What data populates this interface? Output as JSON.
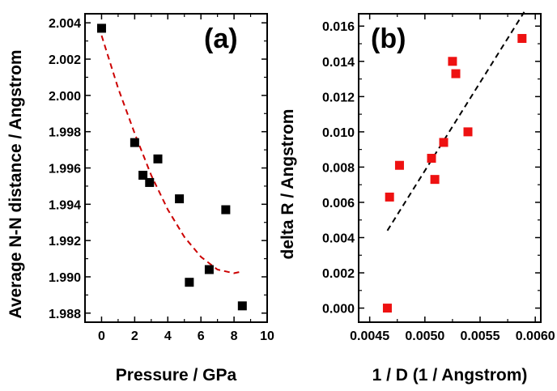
{
  "chart_data": [
    {
      "type": "scatter",
      "panel_label": "(a)",
      "xlabel": "Pressure / GPa",
      "ylabel": "Average N-N distance / Angstrom",
      "xlim": [
        -1,
        10
      ],
      "ylim": [
        1.9875,
        2.0045
      ],
      "xticks": [
        0,
        2,
        4,
        6,
        8,
        10
      ],
      "xtick_labels": [
        "0",
        "2",
        "4",
        "6",
        "8",
        "10"
      ],
      "yticks": [
        1.988,
        1.99,
        1.992,
        1.994,
        1.996,
        1.998,
        2.0,
        2.002,
        2.004
      ],
      "ytick_labels": [
        "1.988",
        "1.990",
        "1.992",
        "1.994",
        "1.996",
        "1.998",
        "2.000",
        "2.002",
        "2.004"
      ],
      "grid": false,
      "marker_color": "#000000",
      "fit_color": "#cc0000",
      "points": [
        {
          "x": 0.0,
          "y": 2.0037
        },
        {
          "x": 2.0,
          "y": 1.9974
        },
        {
          "x": 2.5,
          "y": 1.9956
        },
        {
          "x": 2.9,
          "y": 1.9952
        },
        {
          "x": 3.4,
          "y": 1.9965
        },
        {
          "x": 4.7,
          "y": 1.9943
        },
        {
          "x": 5.3,
          "y": 1.9897
        },
        {
          "x": 6.5,
          "y": 1.9904
        },
        {
          "x": 7.5,
          "y": 1.9937
        },
        {
          "x": 8.5,
          "y": 1.9884
        }
      ],
      "fit": {
        "style": "dashed",
        "x": [
          0.0,
          1.0,
          2.0,
          3.0,
          4.0,
          5.0,
          6.0,
          7.0,
          8.0,
          8.5
        ],
        "y": [
          2.0033,
          2.0004,
          1.9979,
          1.9956,
          1.9937,
          1.9922,
          1.9911,
          1.9904,
          1.9902,
          1.9903
        ]
      }
    },
    {
      "type": "scatter",
      "panel_label": "(b)",
      "xlabel": "1 / D (1 / Angstrom)",
      "ylabel": "delta R / Angstrom",
      "xlim": [
        0.0044,
        0.00605
      ],
      "ylim": [
        -0.0008,
        0.0167
      ],
      "xticks": [
        0.0045,
        0.005,
        0.0055,
        0.006
      ],
      "xtick_labels": [
        "0.0045",
        "0.0050",
        "0.0055",
        "0.0060"
      ],
      "yticks": [
        0.0,
        0.002,
        0.004,
        0.006,
        0.008,
        0.01,
        0.012,
        0.014,
        0.016
      ],
      "ytick_labels": [
        "0.000",
        "0.002",
        "0.004",
        "0.006",
        "0.008",
        "0.010",
        "0.012",
        "0.014",
        "0.016"
      ],
      "grid": false,
      "marker_color": "#ee1111",
      "fit_color": "#000000",
      "points": [
        {
          "x": 0.00466,
          "y": 0.0
        },
        {
          "x": 0.00468,
          "y": 0.0063
        },
        {
          "x": 0.00477,
          "y": 0.0081
        },
        {
          "x": 0.00506,
          "y": 0.0085
        },
        {
          "x": 0.00509,
          "y": 0.0073
        },
        {
          "x": 0.00517,
          "y": 0.0094
        },
        {
          "x": 0.00525,
          "y": 0.014
        },
        {
          "x": 0.00528,
          "y": 0.0133
        },
        {
          "x": 0.00539,
          "y": 0.01
        },
        {
          "x": 0.00588,
          "y": 0.0153
        }
      ],
      "fit": {
        "style": "dashed",
        "x": [
          0.00466,
          0.0059
        ],
        "y": [
          0.0044,
          0.0168
        ]
      }
    }
  ]
}
